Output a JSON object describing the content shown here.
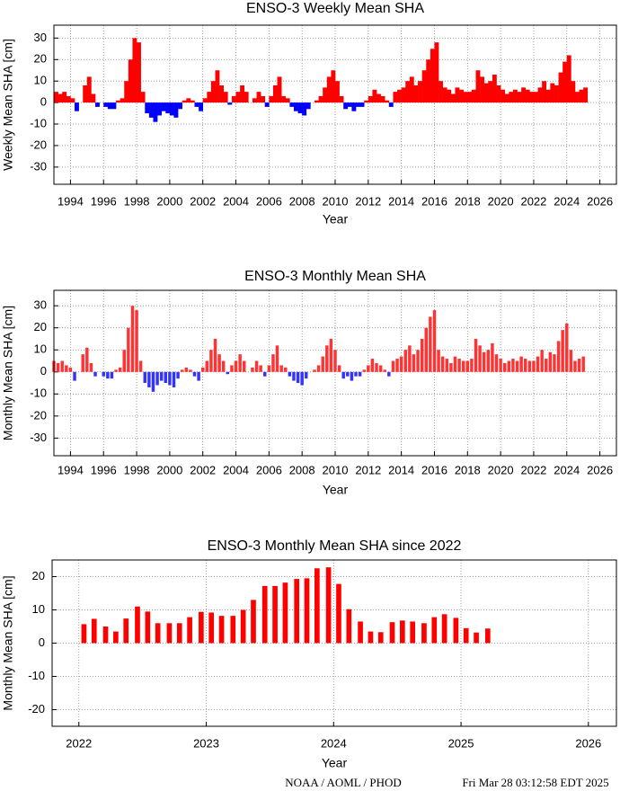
{
  "chart_data": [
    {
      "type": "area",
      "title": "ENSO-3 Weekly Mean SHA",
      "xlabel": "Year",
      "ylabel": "Weekly Mean SHA [cm]",
      "x": [
        1993,
        1993.25,
        1993.5,
        1993.75,
        1994,
        1994.25,
        1994.5,
        1994.75,
        1995,
        1995.25,
        1995.5,
        1995.75,
        1996,
        1996.25,
        1996.5,
        1996.75,
        1997,
        1997.25,
        1997.5,
        1997.75,
        1998,
        1998.25,
        1998.5,
        1998.75,
        1999,
        1999.25,
        1999.5,
        1999.75,
        2000,
        2000.25,
        2000.5,
        2000.75,
        2001,
        2001.25,
        2001.5,
        2001.75,
        2002,
        2002.25,
        2002.5,
        2002.75,
        2003,
        2003.25,
        2003.5,
        2003.75,
        2004,
        2004.25,
        2004.5,
        2004.75,
        2005,
        2005.25,
        2005.5,
        2005.75,
        2006,
        2006.25,
        2006.5,
        2006.75,
        2007,
        2007.25,
        2007.5,
        2007.75,
        2008,
        2008.25,
        2008.5,
        2008.75,
        2009,
        2009.25,
        2009.5,
        2009.75,
        2010,
        2010.25,
        2010.5,
        2010.75,
        2011,
        2011.25,
        2011.5,
        2011.75,
        2012,
        2012.25,
        2012.5,
        2012.75,
        2013,
        2013.25,
        2013.5,
        2013.75,
        2014,
        2014.25,
        2014.5,
        2014.75,
        2015,
        2015.25,
        2015.5,
        2015.75,
        2016,
        2016.25,
        2016.5,
        2016.75,
        2017,
        2017.25,
        2017.5,
        2017.75,
        2018,
        2018.25,
        2018.5,
        2018.75,
        2019,
        2019.25,
        2019.5,
        2019.75,
        2020,
        2020.25,
        2020.5,
        2020.75,
        2021,
        2021.25,
        2021.5,
        2021.75,
        2022,
        2022.25,
        2022.5,
        2022.75,
        2023,
        2023.25,
        2023.5,
        2023.75,
        2024,
        2024.25,
        2024.5,
        2024.75,
        2025
      ],
      "values": [
        5,
        4,
        5,
        3,
        2,
        -4,
        0,
        8,
        12,
        4,
        -2,
        0,
        -2,
        -3,
        -3,
        1,
        2,
        10,
        20,
        30,
        28,
        5,
        -5,
        -7,
        -9,
        -6,
        -4,
        -5,
        -6,
        -7,
        -3,
        1,
        2,
        1,
        -2,
        -4,
        2,
        5,
        10,
        15,
        8,
        5,
        -1,
        3,
        5,
        8,
        5,
        0,
        2,
        5,
        3,
        -2,
        3,
        8,
        12,
        3,
        2,
        -2,
        -4,
        -5,
        -6,
        -3,
        0,
        1,
        3,
        7,
        12,
        15,
        10,
        3,
        -3,
        -2,
        -4,
        -2,
        -2,
        1,
        3,
        6,
        4,
        3,
        1,
        -2,
        5,
        6,
        7,
        10,
        12,
        8,
        10,
        15,
        20,
        25,
        28,
        10,
        7,
        6,
        4,
        7,
        6,
        5,
        5,
        6,
        15,
        12,
        9,
        10,
        13,
        8,
        6,
        4,
        5,
        6,
        5,
        7,
        6,
        5,
        5,
        7,
        10,
        6,
        9,
        8,
        14,
        19,
        22,
        10,
        5,
        6,
        7
      ],
      "color_positive": "#ff0000",
      "color_negative": "#0000ff",
      "xlim": [
        1993,
        2027
      ],
      "ylim": [
        -38,
        36
      ],
      "xticks": [
        1994,
        1996,
        1998,
        2000,
        2002,
        2004,
        2006,
        2008,
        2010,
        2012,
        2014,
        2016,
        2018,
        2020,
        2022,
        2024,
        2026
      ],
      "yticks": [
        -30,
        -20,
        -10,
        0,
        10,
        20,
        30
      ],
      "grid": true
    },
    {
      "type": "bar",
      "title": "ENSO-3 Monthly Mean SHA",
      "xlabel": "Year",
      "ylabel": "Monthly Mean SHA [cm]",
      "x": [
        1993,
        1993.25,
        1993.5,
        1993.75,
        1994,
        1994.25,
        1994.5,
        1994.75,
        1995,
        1995.25,
        1995.5,
        1995.75,
        1996,
        1996.25,
        1996.5,
        1996.75,
        1997,
        1997.25,
        1997.5,
        1997.75,
        1998,
        1998.25,
        1998.5,
        1998.75,
        1999,
        1999.25,
        1999.5,
        1999.75,
        2000,
        2000.25,
        2000.5,
        2000.75,
        2001,
        2001.25,
        2001.5,
        2001.75,
        2002,
        2002.25,
        2002.5,
        2002.75,
        2003,
        2003.25,
        2003.5,
        2003.75,
        2004,
        2004.25,
        2004.5,
        2004.75,
        2005,
        2005.25,
        2005.5,
        2005.75,
        2006,
        2006.25,
        2006.5,
        2006.75,
        2007,
        2007.25,
        2007.5,
        2007.75,
        2008,
        2008.25,
        2008.5,
        2008.75,
        2009,
        2009.25,
        2009.5,
        2009.75,
        2010,
        2010.25,
        2010.5,
        2010.75,
        2011,
        2011.25,
        2011.5,
        2011.75,
        2012,
        2012.25,
        2012.5,
        2012.75,
        2013,
        2013.25,
        2013.5,
        2013.75,
        2014,
        2014.25,
        2014.5,
        2014.75,
        2015,
        2015.25,
        2015.5,
        2015.75,
        2016,
        2016.25,
        2016.5,
        2016.75,
        2017,
        2017.25,
        2017.5,
        2017.75,
        2018,
        2018.25,
        2018.5,
        2018.75,
        2019,
        2019.25,
        2019.5,
        2019.75,
        2020,
        2020.25,
        2020.5,
        2020.75,
        2021,
        2021.25,
        2021.5,
        2021.75,
        2022,
        2022.25,
        2022.5,
        2022.75,
        2023,
        2023.25,
        2023.5,
        2023.75,
        2024,
        2024.25,
        2024.5,
        2024.75,
        2025
      ],
      "values": [
        5,
        4,
        5,
        3,
        2,
        -4,
        0,
        8,
        11,
        4,
        -2,
        0,
        -2,
        -3,
        -3,
        1,
        2,
        10,
        20,
        30,
        28,
        5,
        -5,
        -7,
        -9,
        -6,
        -4,
        -5,
        -6,
        -7,
        -3,
        1,
        2,
        1,
        -2,
        -4,
        2,
        5,
        10,
        15,
        8,
        5,
        -1,
        3,
        5,
        8,
        5,
        0,
        2,
        5,
        3,
        -2,
        3,
        8,
        12,
        3,
        2,
        -2,
        -4,
        -5,
        -6,
        -3,
        0,
        1,
        3,
        7,
        12,
        15,
        10,
        3,
        -3,
        -2,
        -4,
        -2,
        -2,
        1,
        3,
        6,
        4,
        3,
        1,
        -2,
        5,
        6,
        7,
        10,
        12,
        8,
        10,
        15,
        20,
        25,
        28,
        10,
        7,
        6,
        4,
        7,
        6,
        5,
        5,
        6,
        15,
        12,
        9,
        10,
        13,
        8,
        6,
        4,
        5,
        6,
        5,
        7,
        6,
        5,
        5,
        7,
        10,
        6,
        9,
        8,
        14,
        19,
        22,
        10,
        5,
        6,
        7
      ],
      "color_positive": "#ff3333",
      "color_negative": "#3333ff",
      "xlim": [
        1993,
        2027
      ],
      "ylim": [
        -38,
        37
      ],
      "xticks": [
        1994,
        1996,
        1998,
        2000,
        2002,
        2004,
        2006,
        2008,
        2010,
        2012,
        2014,
        2016,
        2018,
        2020,
        2022,
        2024,
        2026
      ],
      "yticks": [
        -30,
        -20,
        -10,
        0,
        10,
        20,
        30
      ],
      "grid": true
    },
    {
      "type": "bar",
      "title": "ENSO-3 Monthly Mean SHA since 2022",
      "xlabel": "Year",
      "ylabel": "Monthly Mean SHA [cm]",
      "x": [
        2022.04,
        2022.12,
        2022.21,
        2022.29,
        2022.37,
        2022.46,
        2022.54,
        2022.62,
        2022.71,
        2022.79,
        2022.87,
        2022.96,
        2023.04,
        2023.12,
        2023.21,
        2023.29,
        2023.37,
        2023.46,
        2023.54,
        2023.62,
        2023.71,
        2023.79,
        2023.87,
        2023.96,
        2024.04,
        2024.12,
        2024.21,
        2024.29,
        2024.37,
        2024.46,
        2024.54,
        2024.62,
        2024.71,
        2024.79,
        2024.87,
        2024.96,
        2025.04,
        2025.12,
        2025.21
      ],
      "values": [
        5.7,
        7.3,
        5,
        3.5,
        7.4,
        11,
        9.5,
        6,
        6,
        6,
        7.8,
        9.4,
        9.2,
        8.2,
        8.2,
        10,
        13,
        17.2,
        17.2,
        18.2,
        19.3,
        19.5,
        22.5,
        22.8,
        17.8,
        10.2,
        6.5,
        3.5,
        3.3,
        6.3,
        6.8,
        6.5,
        6,
        7.8,
        8.7,
        7.6,
        4.5,
        3.2,
        4.4
      ],
      "color_positive": "#ff0000",
      "xlim": [
        2021.79,
        2026.22
      ],
      "ylim": [
        -25,
        25
      ],
      "xticks": [
        2022,
        2023,
        2024,
        2025,
        2026
      ],
      "yticks": [
        -20,
        -10,
        0,
        10,
        20
      ],
      "grid": true
    }
  ],
  "footer": {
    "source": "NOAA / AOML / PHOD",
    "timestamp": "Fri Mar 28 03:12:58 EDT 2025"
  }
}
